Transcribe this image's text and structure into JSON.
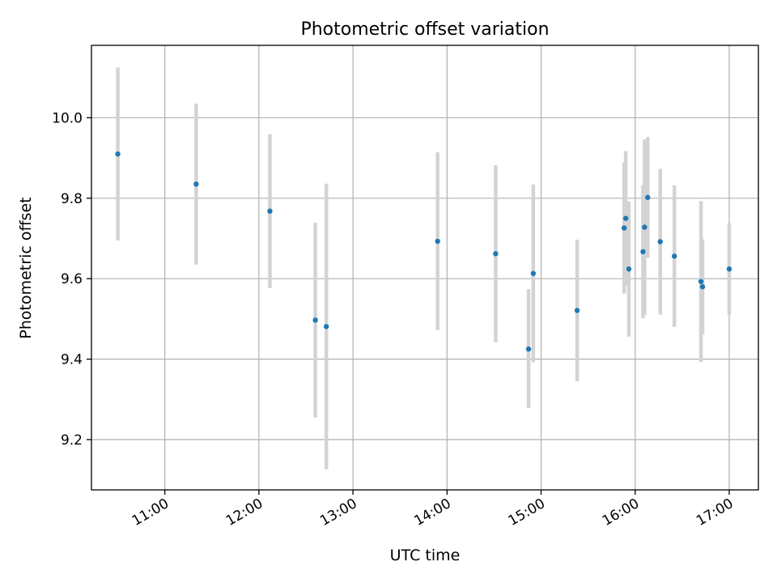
{
  "chart_data": {
    "type": "scatter",
    "title": "Photometric offset variation",
    "xlabel": "UTC time",
    "ylabel": "Photometric offset",
    "x_ticks": [
      "11:00",
      "12:00",
      "13:00",
      "14:00",
      "15:00",
      "16:00",
      "17:00"
    ],
    "x_tick_hours": [
      11,
      12,
      13,
      14,
      15,
      16,
      17
    ],
    "xlim_hours": [
      10.22,
      17.31
    ],
    "y_ticks": [
      "9.2",
      "9.4",
      "9.6",
      "9.8",
      "10.0"
    ],
    "y_tick_values": [
      9.2,
      9.4,
      9.6,
      9.8,
      10.0
    ],
    "ylim": [
      9.075,
      10.18
    ],
    "grid": true,
    "point_color": "#1f77b4",
    "errorbar_color": "#d3d3d3",
    "points": [
      {
        "t": "10:30",
        "y": 9.91,
        "lo": 9.695,
        "hi": 10.125
      },
      {
        "t": "11:20",
        "y": 9.835,
        "lo": 9.635,
        "hi": 10.035
      },
      {
        "t": "12:07",
        "y": 9.768,
        "lo": 9.577,
        "hi": 9.959
      },
      {
        "t": "12:36",
        "y": 9.497,
        "lo": 9.255,
        "hi": 9.739
      },
      {
        "t": "12:43",
        "y": 9.481,
        "lo": 9.126,
        "hi": 9.836
      },
      {
        "t": "13:54",
        "y": 9.693,
        "lo": 9.472,
        "hi": 9.914
      },
      {
        "t": "14:31",
        "y": 9.662,
        "lo": 9.442,
        "hi": 9.882
      },
      {
        "t": "14:52",
        "y": 9.425,
        "lo": 9.278,
        "hi": 9.574
      },
      {
        "t": "14:55",
        "y": 9.613,
        "lo": 9.392,
        "hi": 9.834
      },
      {
        "t": "15:23",
        "y": 9.521,
        "lo": 9.345,
        "hi": 9.697
      },
      {
        "t": "15:53",
        "y": 9.726,
        "lo": 9.563,
        "hi": 9.889
      },
      {
        "t": "15:54",
        "y": 9.75,
        "lo": 9.583,
        "hi": 9.917
      },
      {
        "t": "15:56",
        "y": 9.624,
        "lo": 9.456,
        "hi": 9.792
      },
      {
        "t": "16:05",
        "y": 9.667,
        "lo": 9.502,
        "hi": 9.832
      },
      {
        "t": "16:06",
        "y": 9.728,
        "lo": 9.51,
        "hi": 9.946
      },
      {
        "t": "16:08",
        "y": 9.802,
        "lo": 9.652,
        "hi": 9.952
      },
      {
        "t": "16:16",
        "y": 9.692,
        "lo": 9.511,
        "hi": 9.873
      },
      {
        "t": "16:25",
        "y": 9.656,
        "lo": 9.48,
        "hi": 9.832
      },
      {
        "t": "16:42",
        "y": 9.593,
        "lo": 9.393,
        "hi": 9.793
      },
      {
        "t": "16:43",
        "y": 9.58,
        "lo": 9.462,
        "hi": 9.698
      },
      {
        "t": "17:00",
        "y": 9.624,
        "lo": 9.51,
        "hi": 9.738
      }
    ]
  }
}
